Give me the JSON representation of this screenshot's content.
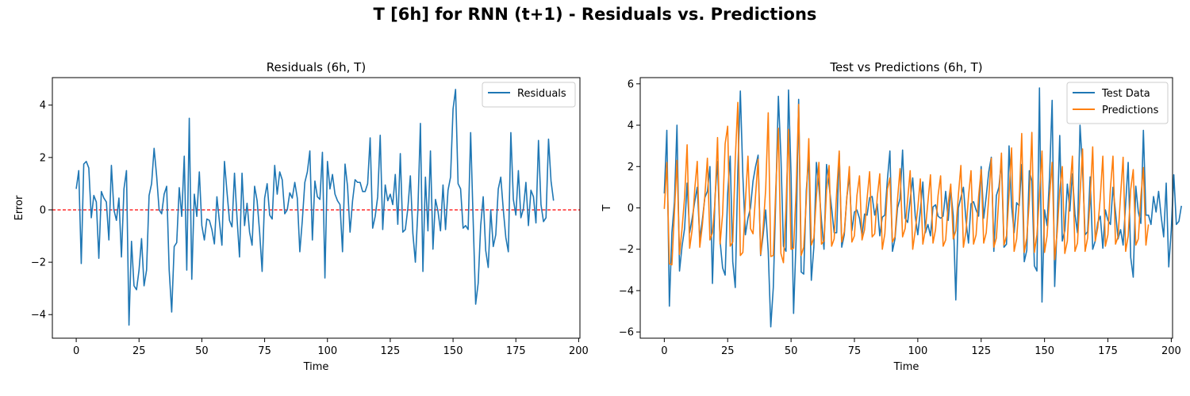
{
  "figure": {
    "title": "T [6h] for RNN (t+1) - Residuals vs. Predictions"
  },
  "chart_data": [
    {
      "type": "line",
      "title": "Residuals (6h, T)",
      "xlabel": "Time",
      "ylabel": "Error",
      "xlim": [
        -9.5,
        200.5
      ],
      "ylim": [
        -4.9,
        5.05
      ],
      "xticks": [
        0,
        25,
        50,
        75,
        100,
        125,
        150,
        175,
        200
      ],
      "yticks": [
        -4,
        -2,
        0,
        2,
        4
      ],
      "legend": "top-right",
      "hline": {
        "y": 0,
        "color": "#ff0000",
        "style": "dashed"
      },
      "series": [
        {
          "name": "Residuals",
          "color": "#1f77b4",
          "values": [
            0.8,
            1.5,
            -2.05,
            1.75,
            1.85,
            1.6,
            -0.3,
            0.55,
            0.3,
            -1.85,
            0.7,
            0.45,
            0.3,
            -1.15,
            1.7,
            0.0,
            -0.4,
            0.45,
            -1.8,
            0.8,
            1.5,
            -4.4,
            -1.2,
            -2.9,
            -3.05,
            -2.3,
            -1.1,
            -2.9,
            -2.3,
            0.55,
            1.0,
            2.35,
            1.3,
            0.0,
            -0.15,
            0.6,
            0.9,
            -2.3,
            -3.9,
            -1.4,
            -1.25,
            0.85,
            -0.25,
            2.05,
            -2.3,
            3.5,
            -2.65,
            0.6,
            -0.25,
            1.45,
            -0.6,
            -1.15,
            -0.35,
            -0.4,
            -0.75,
            -1.3,
            0.5,
            -0.45,
            -1.35,
            1.85,
            0.7,
            -0.4,
            -0.65,
            1.4,
            -0.3,
            -1.8,
            1.4,
            -0.6,
            0.25,
            -0.85,
            -1.35,
            0.9,
            0.35,
            -0.85,
            -2.35,
            0.45,
            1.0,
            -0.2,
            -0.35,
            1.7,
            0.6,
            1.45,
            1.15,
            -0.15,
            0.0,
            0.65,
            0.45,
            1.05,
            0.45,
            -1.6,
            -0.4,
            1.05,
            1.45,
            2.25,
            -1.15,
            1.1,
            0.5,
            0.4,
            2.2,
            -2.6,
            1.85,
            0.8,
            1.35,
            0.6,
            0.35,
            0.2,
            -1.6,
            1.75,
            0.9,
            -0.85,
            0.35,
            1.15,
            1.05,
            1.05,
            0.7,
            0.7,
            1.0,
            2.75,
            -0.7,
            -0.25,
            0.5,
            2.85,
            -0.75,
            0.95,
            0.35,
            0.6,
            0.2,
            1.35,
            -0.55,
            2.15,
            -0.85,
            -0.75,
            0.05,
            1.3,
            -0.9,
            -2.0,
            0.0,
            3.3,
            -2.35,
            1.25,
            -0.8,
            2.25,
            -1.5,
            0.4,
            -0.05,
            -0.8,
            0.95,
            -0.75,
            0.75,
            1.25,
            3.85,
            4.6,
            1.0,
            0.8,
            -0.7,
            -0.6,
            -0.75,
            2.95,
            -0.4,
            -3.6,
            -2.8,
            -0.6,
            0.5,
            -1.55,
            -2.2,
            0.0,
            -1.4,
            -0.95,
            0.8,
            1.25,
            0.0,
            -1.05,
            -1.6,
            2.95,
            0.4,
            -0.2,
            1.5,
            -0.3,
            0.05,
            1.05,
            -0.6,
            0.75,
            0.5,
            -0.5,
            2.65,
            0.2,
            -0.45,
            -0.3,
            2.7,
            1.1,
            0.35
          ]
        }
      ]
    },
    {
      "type": "line",
      "title": "Test vs Predictions (6h, T)",
      "xlabel": "Time",
      "ylabel": "T",
      "xlim": [
        -9.5,
        200.5
      ],
      "ylim": [
        -6.3,
        6.3
      ],
      "xticks": [
        0,
        25,
        50,
        75,
        100,
        125,
        150,
        175,
        200
      ],
      "yticks": [
        -6,
        -4,
        -2,
        0,
        2,
        4,
        6
      ],
      "legend": "top-right",
      "series": [
        {
          "name": "Test Data",
          "color": "#1f77b4",
          "values": [
            0.7,
            3.75,
            -4.75,
            -1.2,
            0.3,
            4.0,
            -3.05,
            -1.85,
            -1.0,
            1.2,
            -1.2,
            -0.5,
            0.3,
            1.0,
            -1.5,
            -0.6,
            0.5,
            0.8,
            2.0,
            -3.65,
            0.5,
            2.25,
            -1.6,
            -2.9,
            -3.25,
            0.7,
            2.5,
            -2.6,
            -3.85,
            1.8,
            5.65,
            1.5,
            -1.3,
            -0.5,
            0.0,
            1.3,
            2.0,
            2.55,
            -2.3,
            -1.3,
            -0.1,
            -2.1,
            -5.75,
            -3.85,
            0.6,
            5.4,
            2.5,
            -1.85,
            -2.1,
            5.7,
            1.6,
            -5.1,
            -1.5,
            5.25,
            -3.1,
            -3.2,
            0.8,
            2.5,
            -3.5,
            -1.9,
            2.2,
            1.0,
            -0.6,
            -2.0,
            2.1,
            1.1,
            0.0,
            -1.2,
            -1.2,
            2.65,
            -1.9,
            -1.3,
            0.5,
            1.55,
            -1.1,
            -0.2,
            -0.1,
            -0.5,
            -1.35,
            -0.3,
            -0.35,
            0.5,
            0.55,
            -0.35,
            0.2,
            -1.35,
            -0.45,
            -0.35,
            1.35,
            2.75,
            -2.1,
            -1.5,
            0.0,
            0.45,
            2.8,
            -0.5,
            -0.7,
            0.4,
            1.45,
            -0.4,
            -1.3,
            -0.15,
            1.25,
            -1.2,
            -0.8,
            -1.35,
            0.05,
            0.15,
            -0.4,
            -0.5,
            -0.4,
            0.8,
            -0.6,
            0.9,
            -0.4,
            -4.45,
            0.0,
            0.5,
            1.0,
            -0.6,
            -1.7,
            0.2,
            0.3,
            -0.1,
            -0.4,
            2.0,
            -0.5,
            0.55,
            1.75,
            2.45,
            -2.1,
            0.6,
            1.0,
            2.25,
            -1.9,
            -1.75,
            3.0,
            0.1,
            -1.2,
            0.25,
            0.1,
            2.1,
            -2.6,
            -2.05,
            1.8,
            1.3,
            -2.8,
            -3.05,
            5.8,
            -4.55,
            -0.1,
            -0.85,
            1.55,
            5.2,
            -3.8,
            -0.7,
            3.5,
            -1.6,
            -1.1,
            1.15,
            -0.15,
            1.65,
            -0.3,
            -1.2,
            4.0,
            1.9,
            -1.3,
            -1.15,
            1.5,
            -2.0,
            -1.6,
            -0.7,
            -0.4,
            -1.95,
            -0.1,
            -0.6,
            -0.8,
            1.0,
            -0.2,
            -1.5,
            -1.05,
            -1.8,
            0.2,
            2.2,
            -2.4,
            -3.35,
            1.05,
            -0.2,
            -0.75,
            3.75,
            -0.35,
            -0.35,
            -0.8,
            0.55,
            -0.2,
            0.8,
            -0.4,
            -1.4,
            1.2,
            -2.85,
            -1.05,
            1.6,
            -0.8,
            -0.65,
            0.1
          ]
        },
        {
          "name": "Predictions",
          "color": "#ff7f0e",
          "values": [
            -0.05,
            2.2,
            -2.7,
            -2.75,
            -0.2,
            2.3,
            -2.25,
            -1.0,
            0.5,
            3.05,
            -1.95,
            -1.05,
            0.9,
            2.25,
            -1.9,
            -0.85,
            0.6,
            2.4,
            -1.55,
            -1.2,
            0.3,
            3.4,
            -1.75,
            -0.3,
            3.1,
            3.95,
            -1.85,
            -1.65,
            2.35,
            5.1,
            -2.3,
            -2.15,
            0.3,
            2.5,
            -1.0,
            -1.25,
            0.6,
            2.35,
            -2.25,
            -0.95,
            0.9,
            4.6,
            -2.35,
            -2.3,
            1.0,
            3.85,
            -2.2,
            -2.65,
            0.0,
            3.8,
            -2.0,
            -1.95,
            0.8,
            5.0,
            -2.3,
            -1.9,
            0.35,
            3.35,
            -1.8,
            -1.45,
            0.55,
            2.2,
            -1.75,
            -1.6,
            0.85,
            2.05,
            -1.85,
            -1.5,
            0.75,
            2.75,
            -1.65,
            -1.15,
            0.45,
            2.0,
            -1.65,
            -1.35,
            0.6,
            1.55,
            -1.55,
            -1.05,
            0.45,
            1.75,
            -1.4,
            -1.25,
            0.5,
            1.65,
            -2.0,
            -1.25,
            0.9,
            1.45,
            -1.65,
            -1.4,
            0.4,
            1.9,
            -1.4,
            -1.0,
            0.4,
            1.8,
            -2.0,
            -1.1,
            0.0,
            1.4,
            -1.75,
            -1.05,
            0.3,
            1.6,
            -1.7,
            -1.05,
            0.6,
            1.55,
            -1.85,
            -1.55,
            0.2,
            1.15,
            -1.5,
            -1.1,
            0.6,
            2.05,
            -1.9,
            -1.15,
            0.55,
            1.8,
            -1.75,
            -1.3,
            0.55,
            1.85,
            -1.7,
            -1.2,
            0.5,
            2.4,
            -1.9,
            -1.45,
            0.55,
            2.65,
            -1.8,
            -1.35,
            0.65,
            2.9,
            -2.1,
            -1.5,
            0.3,
            3.6,
            -2.15,
            -1.45,
            0.35,
            3.65,
            -2.15,
            -1.3,
            0.6,
            2.75,
            -2.15,
            -1.35,
            0.6,
            2.2,
            -2.5,
            -1.15,
            0.85,
            2.0,
            -2.2,
            -1.6,
            0.9,
            2.5,
            -2.1,
            -1.7,
            0.65,
            2.85,
            -2.1,
            -1.45,
            0.45,
            2.95,
            -1.6,
            -0.95,
            0.5,
            2.5,
            -1.85,
            -1.3,
            0.95,
            2.5,
            -1.75,
            -1.4,
            0.6,
            2.45,
            -2.1,
            -1.35,
            0.9,
            1.85,
            -1.8,
            -1.5,
            0.55,
            1.95,
            -1.8,
            -0.8
          ]
        }
      ]
    }
  ]
}
